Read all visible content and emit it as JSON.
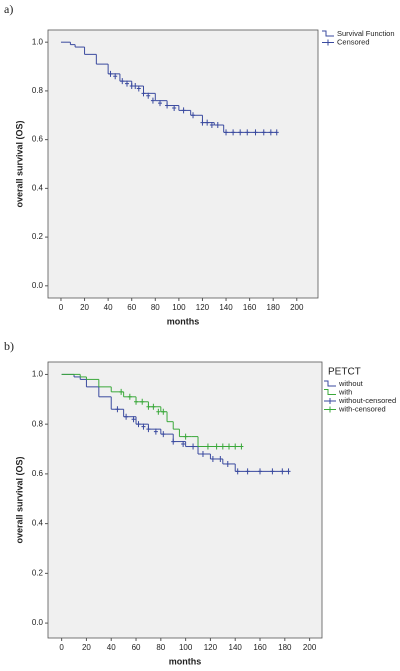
{
  "chart_data": [
    {
      "panel_label": "a)",
      "type": "line",
      "step": true,
      "ylabel": "overall survival (OS)",
      "xlabel": "months",
      "xlim": [
        -11,
        218
      ],
      "ylim": [
        -0.05,
        1.05
      ],
      "xticks": [
        0,
        20,
        40,
        60,
        80,
        100,
        120,
        140,
        160,
        180,
        200
      ],
      "yticks": [
        {
          "value": 0,
          "label": "0.0"
        },
        0.2,
        0.4,
        0.6,
        0.8,
        {
          "value": 1,
          "label": "1.0"
        }
      ],
      "legend": "right",
      "series": [
        {
          "name": "Survival Function",
          "kind": "step",
          "color": "#3a4a9f",
          "x": [
            0,
            8,
            12,
            20,
            30,
            40,
            50,
            60,
            70,
            80,
            90,
            100,
            110,
            120,
            130,
            138,
            183
          ],
          "values": [
            1.0,
            0.99,
            0.98,
            0.95,
            0.91,
            0.87,
            0.84,
            0.82,
            0.79,
            0.76,
            0.74,
            0.72,
            0.7,
            0.67,
            0.66,
            0.63,
            0.63
          ]
        },
        {
          "name": "Censored",
          "kind": "censored",
          "color": "#3a4a9f",
          "x": [
            42,
            46,
            52,
            56,
            60,
            63,
            66,
            70,
            74,
            78,
            84,
            90,
            96,
            104,
            112,
            120,
            124,
            128,
            133,
            140,
            146,
            152,
            158,
            165,
            172,
            178,
            183
          ],
          "values": [
            0.87,
            0.86,
            0.84,
            0.83,
            0.82,
            0.82,
            0.81,
            0.79,
            0.78,
            0.76,
            0.75,
            0.74,
            0.73,
            0.72,
            0.7,
            0.67,
            0.67,
            0.66,
            0.66,
            0.63,
            0.63,
            0.63,
            0.63,
            0.63,
            0.63,
            0.63,
            0.63
          ]
        }
      ]
    },
    {
      "panel_label": "b)",
      "type": "line",
      "step": true,
      "ylabel": "overall survival (OS)",
      "xlabel": "months",
      "xlim": [
        -11,
        210
      ],
      "ylim": [
        -0.06,
        1.05
      ],
      "xticks": [
        0,
        20,
        40,
        60,
        80,
        100,
        120,
        140,
        160,
        180,
        200
      ],
      "yticks": [
        {
          "value": 0,
          "label": "0.0"
        },
        0.2,
        0.4,
        0.6,
        0.8,
        {
          "value": 1,
          "label": "1.0"
        }
      ],
      "legend": "right",
      "legend_title": "PETCT",
      "series": [
        {
          "name": "without",
          "kind": "step",
          "color": "#3a4a9f",
          "x": [
            0,
            10,
            15,
            20,
            30,
            40,
            50,
            60,
            70,
            80,
            90,
            100,
            110,
            120,
            130,
            140,
            183
          ],
          "values": [
            1.0,
            0.99,
            0.98,
            0.95,
            0.91,
            0.86,
            0.83,
            0.8,
            0.78,
            0.76,
            0.73,
            0.71,
            0.68,
            0.66,
            0.64,
            0.61,
            0.61
          ]
        },
        {
          "name": "with",
          "kind": "step",
          "color": "#3aa83a",
          "x": [
            0,
            15,
            20,
            30,
            40,
            50,
            60,
            70,
            80,
            85,
            90,
            95,
            105,
            110,
            145
          ],
          "values": [
            1.0,
            0.99,
            0.98,
            0.95,
            0.93,
            0.91,
            0.89,
            0.87,
            0.85,
            0.81,
            0.78,
            0.75,
            0.75,
            0.71,
            0.71
          ]
        },
        {
          "name": "without-censored",
          "kind": "censored",
          "color": "#3a4a9f",
          "x": [
            45,
            52,
            58,
            62,
            66,
            70,
            76,
            82,
            90,
            98,
            106,
            114,
            122,
            128,
            134,
            142,
            150,
            160,
            170,
            178,
            183
          ],
          "values": [
            0.86,
            0.83,
            0.82,
            0.8,
            0.79,
            0.78,
            0.77,
            0.76,
            0.73,
            0.72,
            0.71,
            0.68,
            0.66,
            0.66,
            0.64,
            0.61,
            0.61,
            0.61,
            0.61,
            0.61,
            0.61
          ]
        },
        {
          "name": "with-censored",
          "kind": "censored",
          "color": "#3aa83a",
          "x": [
            48,
            55,
            60,
            65,
            70,
            74,
            78,
            82,
            100,
            118,
            125,
            130,
            135,
            140,
            145
          ],
          "values": [
            0.93,
            0.91,
            0.89,
            0.89,
            0.87,
            0.87,
            0.85,
            0.85,
            0.75,
            0.71,
            0.71,
            0.71,
            0.71,
            0.71,
            0.71
          ]
        }
      ]
    }
  ]
}
